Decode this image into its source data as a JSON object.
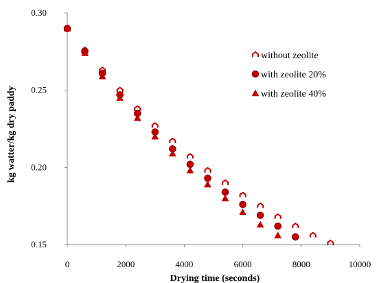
{
  "chart_data": {
    "type": "scatter",
    "xlabel": "Drying time (seconds)",
    "ylabel": "kg watter/kg dry paddy",
    "xlim": [
      0,
      10000
    ],
    "ylim": [
      0.15,
      0.3
    ],
    "xticks": [
      0,
      2000,
      4000,
      6000,
      8000,
      10000
    ],
    "yticks": [
      0.15,
      0.2,
      0.25,
      0.3
    ],
    "xtick_labels": [
      "0",
      "2000",
      "4000",
      "6000",
      "8000",
      "10000"
    ],
    "ytick_labels": [
      "0.15",
      "0.20",
      "0.25",
      "0.30"
    ],
    "grid": false,
    "legend_position": "top-right",
    "marker_color": "#c00000",
    "series": [
      {
        "name": "without zeolite",
        "marker": "open-hollow",
        "x": [
          0,
          600,
          1200,
          1800,
          2400,
          3000,
          3600,
          4200,
          4800,
          5400,
          6000,
          6600,
          7200,
          7800,
          8400,
          9000
        ],
        "y": [
          0.29,
          0.276,
          0.263,
          0.25,
          0.238,
          0.227,
          0.217,
          0.207,
          0.198,
          0.19,
          0.182,
          0.175,
          0.168,
          0.162,
          0.156,
          0.151
        ]
      },
      {
        "name": "with zeolite 20%",
        "marker": "circle",
        "x": [
          0,
          600,
          1200,
          1800,
          2400,
          3000,
          3600,
          4200,
          4800,
          5400,
          6000,
          6600,
          7200,
          7800
        ],
        "y": [
          0.29,
          0.275,
          0.261,
          0.247,
          0.235,
          0.223,
          0.212,
          0.202,
          0.193,
          0.184,
          0.176,
          0.169,
          0.162,
          0.155
        ]
      },
      {
        "name": "with zeolite 40%",
        "marker": "triangle",
        "x": [
          0,
          600,
          1200,
          1800,
          2400,
          3000,
          3600,
          4200,
          4800,
          5400,
          6000,
          6600,
          7200
        ],
        "y": [
          0.29,
          0.274,
          0.259,
          0.245,
          0.232,
          0.22,
          0.209,
          0.198,
          0.189,
          0.18,
          0.171,
          0.163,
          0.156
        ]
      }
    ]
  }
}
